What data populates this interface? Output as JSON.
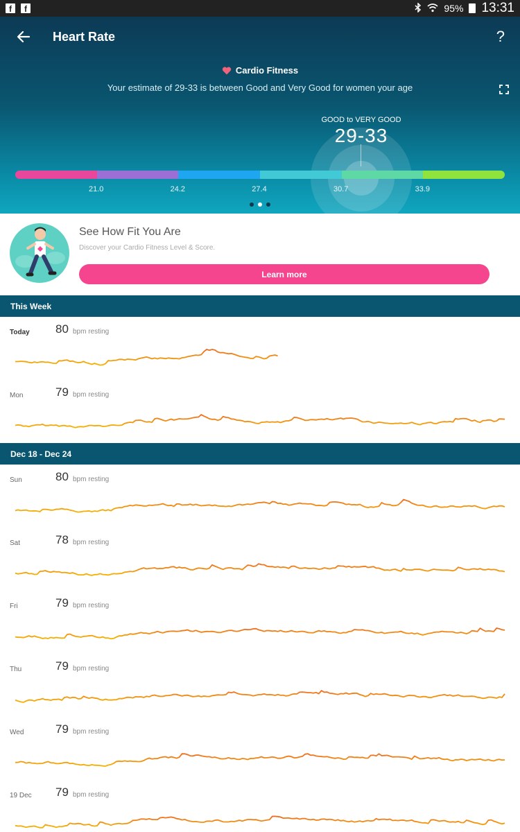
{
  "status": {
    "battery": "95%",
    "time": "13:31",
    "notif_icons": [
      "facebook-icon",
      "facebook-icon"
    ]
  },
  "header": {
    "title": "Heart Rate"
  },
  "cardio": {
    "title": "Cardio Fitness",
    "subtitle": "Your estimate of 29-33 is between Good and Very Good for women your age",
    "range_label": "GOOD to VERY GOOD",
    "range_value": "29-33",
    "meter_ticks": [
      "21.0",
      "24.2",
      "27.4",
      "30.7",
      "33.9"
    ],
    "meter_colors": [
      "#e9479c",
      "#9b6fd6",
      "#1ea6f0",
      "#41c9d6",
      "#5ed8a4",
      "#8fe33c"
    ],
    "estimate": [
      29,
      33
    ],
    "pager": {
      "count": 3,
      "active": 1
    }
  },
  "promo": {
    "title": "See How Fit You Are",
    "description": "Discover your Cardio Fitness Level & Score.",
    "button_label": "Learn more",
    "button_color": "#f4458e"
  },
  "sections": [
    {
      "title": "This Week",
      "days": [
        {
          "label": "Today",
          "bpm": "80",
          "unit": "bpm resting",
          "bold": true,
          "coverage": 0.54,
          "seed": 3
        },
        {
          "label": "Mon",
          "bpm": "79",
          "unit": "bpm resting",
          "bold": false,
          "coverage": 1.0,
          "seed": 7
        }
      ]
    },
    {
      "title": "Dec 18 - Dec 24",
      "days": [
        {
          "label": "Sun",
          "bpm": "80",
          "unit": "bpm resting",
          "bold": false,
          "coverage": 1.0,
          "seed": 11
        },
        {
          "label": "Sat",
          "bpm": "78",
          "unit": "bpm resting",
          "bold": false,
          "coverage": 1.0,
          "seed": 19
        },
        {
          "label": "Fri",
          "bpm": "79",
          "unit": "bpm resting",
          "bold": false,
          "coverage": 1.0,
          "seed": 23
        },
        {
          "label": "Thu",
          "bpm": "79",
          "unit": "bpm resting",
          "bold": false,
          "coverage": 1.0,
          "seed": 29
        },
        {
          "label": "Wed",
          "bpm": "79",
          "unit": "bpm resting",
          "bold": false,
          "coverage": 1.0,
          "seed": 31
        },
        {
          "label": "19 Dec",
          "bpm": "79",
          "unit": "bpm resting",
          "bold": false,
          "coverage": 1.0,
          "seed": 37
        }
      ]
    }
  ],
  "colors": {
    "section_header": "#0a5670",
    "line_low": "#f5b400",
    "line_high": "#ef6a1f"
  }
}
